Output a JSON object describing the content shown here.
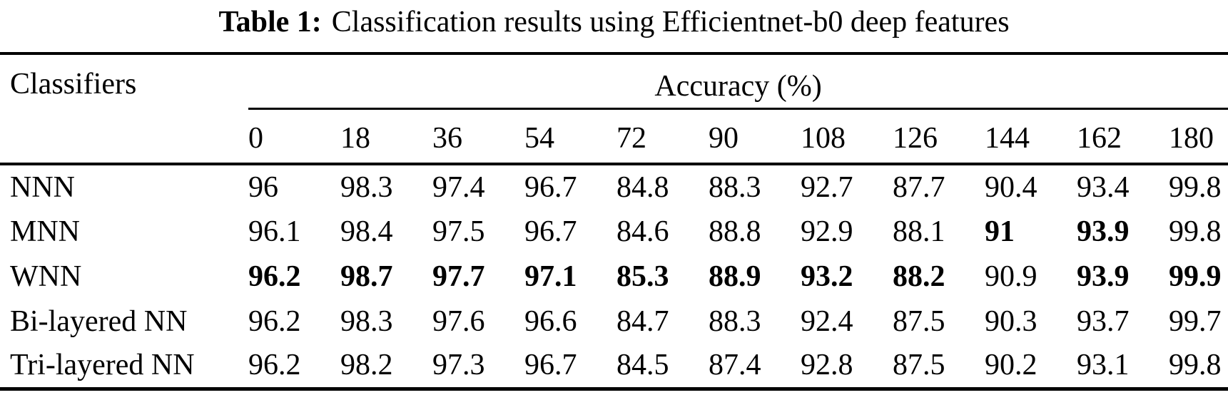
{
  "title": {
    "label": "Table 1:",
    "text": "Classification results using Efficientnet-b0 deep features"
  },
  "table": {
    "classifier_header": "Classifiers",
    "group_header": "Accuracy (%)",
    "angle_columns": [
      "0",
      "18",
      "36",
      "54",
      "72",
      "90",
      "108",
      "126",
      "144",
      "162",
      "180"
    ],
    "rows": [
      {
        "label": "NNN",
        "values": [
          "96",
          "98.3",
          "97.4",
          "96.7",
          "84.8",
          "88.3",
          "92.7",
          "87.7",
          "90.4",
          "93.4",
          "99.8"
        ],
        "bold": [
          false,
          false,
          false,
          false,
          false,
          false,
          false,
          false,
          false,
          false,
          false
        ]
      },
      {
        "label": "MNN",
        "values": [
          "96.1",
          "98.4",
          "97.5",
          "96.7",
          "84.6",
          "88.8",
          "92.9",
          "88.1",
          "91",
          "93.9",
          "99.8"
        ],
        "bold": [
          false,
          false,
          false,
          false,
          false,
          false,
          false,
          false,
          true,
          true,
          false
        ]
      },
      {
        "label": "WNN",
        "values": [
          "96.2",
          "98.7",
          "97.7",
          "97.1",
          "85.3",
          "88.9",
          "93.2",
          "88.2",
          "90.9",
          "93.9",
          "99.9"
        ],
        "bold": [
          true,
          true,
          true,
          true,
          true,
          true,
          true,
          true,
          false,
          true,
          true
        ]
      },
      {
        "label": "Bi-layered NN",
        "values": [
          "96.2",
          "98.3",
          "97.6",
          "96.6",
          "84.7",
          "88.3",
          "92.4",
          "87.5",
          "90.3",
          "93.7",
          "99.7"
        ],
        "bold": [
          false,
          false,
          false,
          false,
          false,
          false,
          false,
          false,
          false,
          false,
          false
        ]
      },
      {
        "label": "Tri-layered NN",
        "values": [
          "96.2",
          "98.2",
          "97.3",
          "96.7",
          "84.5",
          "87.4",
          "92.8",
          "87.5",
          "90.2",
          "93.1",
          "99.8"
        ],
        "bold": [
          false,
          false,
          false,
          false,
          false,
          false,
          false,
          false,
          false,
          false,
          false
        ]
      }
    ]
  }
}
